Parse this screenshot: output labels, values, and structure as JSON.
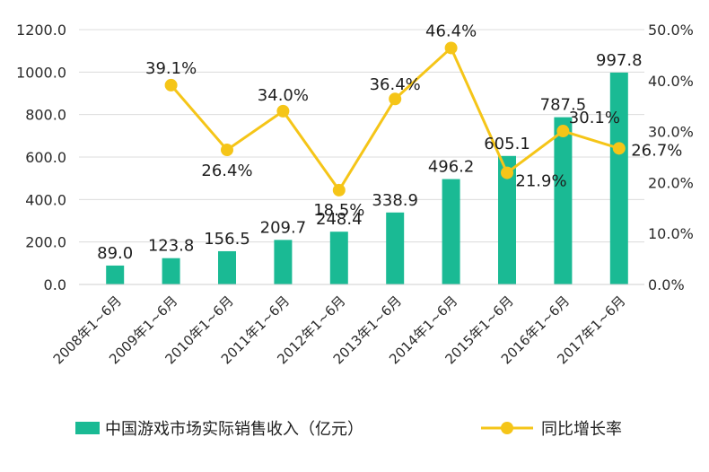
{
  "chart_data": {
    "type": "bar",
    "categories": [
      "2008年1~6月",
      "2009年1~6月",
      "2010年1~6月",
      "2011年1~6月",
      "2012年1~6月",
      "2013年1~6月",
      "2014年1~6月",
      "2015年1~6月",
      "2016年1~6月",
      "2017年1~6月"
    ],
    "series": [
      {
        "name": "中国游戏市场实际销售收入（亿元）",
        "type": "bar",
        "axis": "left",
        "color": "#1aba94",
        "values": [
          89.0,
          123.8,
          156.5,
          209.7,
          248.4,
          338.9,
          496.2,
          605.1,
          787.5,
          997.8
        ],
        "labels": [
          "89.0",
          "123.8",
          "156.5",
          "209.7",
          "248.4",
          "338.9",
          "496.2",
          "605.1",
          "787.5",
          "997.8"
        ]
      },
      {
        "name": "同比增长率",
        "type": "line",
        "axis": "right",
        "color": "#f5c518",
        "values": [
          null,
          39.1,
          26.4,
          34.0,
          18.5,
          36.4,
          46.4,
          21.9,
          30.1,
          26.7
        ],
        "labels": [
          "",
          "39.1%",
          "26.4%",
          "34.0%",
          "18.5%",
          "36.4%",
          "46.4%",
          "21.9%",
          "30.1%",
          "26.7%"
        ]
      }
    ],
    "y_left": {
      "range": [
        0,
        1200
      ],
      "ticks": [
        0,
        200,
        400,
        600,
        800,
        1000,
        1200
      ],
      "tick_labels": [
        "0.0",
        "200.0",
        "400.0",
        "600.0",
        "800.0",
        "1000.0",
        "1200.0"
      ]
    },
    "y_right": {
      "range": [
        0,
        50
      ],
      "ticks": [
        0,
        10,
        20,
        30,
        40,
        50
      ],
      "tick_labels": [
        "0.0%",
        "10.0%",
        "20.0%",
        "30.0%",
        "40.0%",
        "50.0%"
      ]
    },
    "grid": true,
    "legend_position": "bottom"
  }
}
